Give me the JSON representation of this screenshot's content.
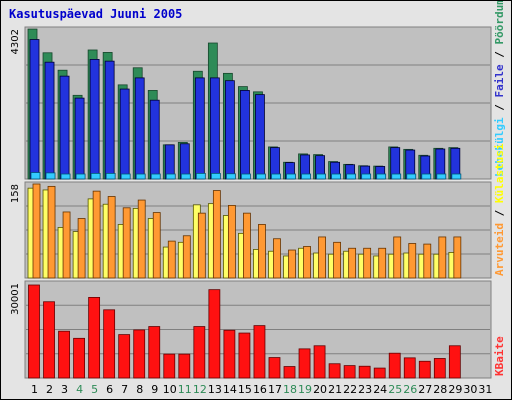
{
  "title": "Kasutuspäevad Juuni 2005",
  "chart_data": [
    {
      "type": "bar",
      "panel": "top",
      "categories": [
        "1",
        "2",
        "3",
        "4",
        "5",
        "6",
        "7",
        "8",
        "9",
        "10",
        "11",
        "12",
        "13",
        "14",
        "15",
        "16",
        "17",
        "18",
        "19",
        "20",
        "21",
        "22",
        "23",
        "24",
        "25",
        "26",
        "27",
        "28",
        "29",
        "30",
        "31"
      ],
      "y_max_label": "4302",
      "ylim": [
        0,
        4302
      ],
      "grid": true,
      "legend": [
        {
          "text": "Pöördumisi",
          "color": "#339966"
        },
        {
          "text": "Faile",
          "color": "#3333cc"
        },
        {
          "text": "Lehekülgi",
          "color": "#33ccff"
        }
      ],
      "separator": "/",
      "series": [
        {
          "name": "Pöördumisi",
          "color": "#2e8b57",
          "values": [
            4300,
            3620,
            3120,
            2400,
            3700,
            3630,
            2700,
            3190,
            2540,
            980,
            1050,
            3090,
            3900,
            3030,
            2650,
            2500,
            920,
            480,
            720,
            700,
            500,
            420,
            380,
            370,
            920,
            850,
            680,
            880,
            900,
            0,
            0
          ]
        },
        {
          "name": "Faile",
          "color": "#2233dd",
          "values": [
            4000,
            3350,
            2950,
            2320,
            3430,
            3380,
            2580,
            2900,
            2260,
            980,
            1010,
            2900,
            2900,
            2820,
            2540,
            2420,
            900,
            470,
            690,
            670,
            480,
            410,
            370,
            360,
            900,
            830,
            660,
            860,
            880,
            0,
            0
          ]
        },
        {
          "name": "Lehekülgi",
          "color": "#33ccff",
          "values": [
            185,
            175,
            120,
            110,
            160,
            160,
            120,
            115,
            115,
            60,
            60,
            160,
            160,
            150,
            110,
            100,
            45,
            38,
            45,
            40,
            35,
            28,
            28,
            28,
            45,
            45,
            38,
            45,
            45,
            0,
            0
          ]
        }
      ]
    },
    {
      "type": "bar",
      "panel": "middle",
      "categories": [
        "1",
        "2",
        "3",
        "4",
        "5",
        "6",
        "7",
        "8",
        "9",
        "10",
        "11",
        "12",
        "13",
        "14",
        "15",
        "16",
        "17",
        "18",
        "19",
        "20",
        "21",
        "22",
        "23",
        "24",
        "25",
        "26",
        "27",
        "28",
        "29",
        "30",
        "31"
      ],
      "y_max_label": "158",
      "ylim": [
        0,
        158
      ],
      "grid": true,
      "legend": [
        {
          "text": "Külastusi",
          "color": "#ffff00"
        },
        {
          "text": "Arvuteid",
          "color": "#ff9933"
        }
      ],
      "separator": "/",
      "series": [
        {
          "name": "Külastusi",
          "color": "#ffff66",
          "values": [
            151,
            148,
            85,
            78,
            133,
            124,
            90,
            117,
            100,
            52,
            60,
            123,
            125,
            105,
            75,
            48,
            45,
            37,
            50,
            42,
            40,
            45,
            40,
            37,
            40,
            42,
            40,
            40,
            43,
            0,
            0
          ]
        },
        {
          "name": "Arvuteid",
          "color": "#ff9933",
          "values": [
            158,
            154,
            111,
            100,
            146,
            137,
            118,
            131,
            110,
            62,
            71,
            109,
            147,
            122,
            109,
            90,
            66,
            47,
            53,
            69,
            60,
            50,
            50,
            50,
            69,
            58,
            57,
            69,
            69,
            0,
            0
          ]
        }
      ]
    },
    {
      "type": "bar",
      "panel": "bottom",
      "categories": [
        "1",
        "2",
        "3",
        "4",
        "5",
        "6",
        "7",
        "8",
        "9",
        "10",
        "11",
        "12",
        "13",
        "14",
        "15",
        "16",
        "17",
        "18",
        "19",
        "20",
        "21",
        "22",
        "23",
        "24",
        "25",
        "26",
        "27",
        "28",
        "29",
        "30",
        "31"
      ],
      "y_max_label": "30001",
      "ylim": [
        0,
        30001
      ],
      "grid": true,
      "legend": [
        {
          "text": "KBaite",
          "color": "#ff3333"
        }
      ],
      "series": [
        {
          "name": "KBaite",
          "color": "#ff1111",
          "values": [
            30001,
            24600,
            15100,
            12800,
            26000,
            22000,
            14000,
            15500,
            16600,
            7700,
            7700,
            16600,
            28500,
            15400,
            14500,
            16900,
            6600,
            3700,
            9400,
            10400,
            4600,
            4000,
            3800,
            3200,
            8000,
            6500,
            5400,
            6300,
            10400,
            0,
            0
          ]
        }
      ]
    }
  ],
  "x_tick_colors": {
    "weekday": "#000000",
    "weekend": "#2e8b57"
  },
  "weekend_days": [
    "4",
    "5",
    "11",
    "12",
    "18",
    "19",
    "25",
    "26"
  ]
}
